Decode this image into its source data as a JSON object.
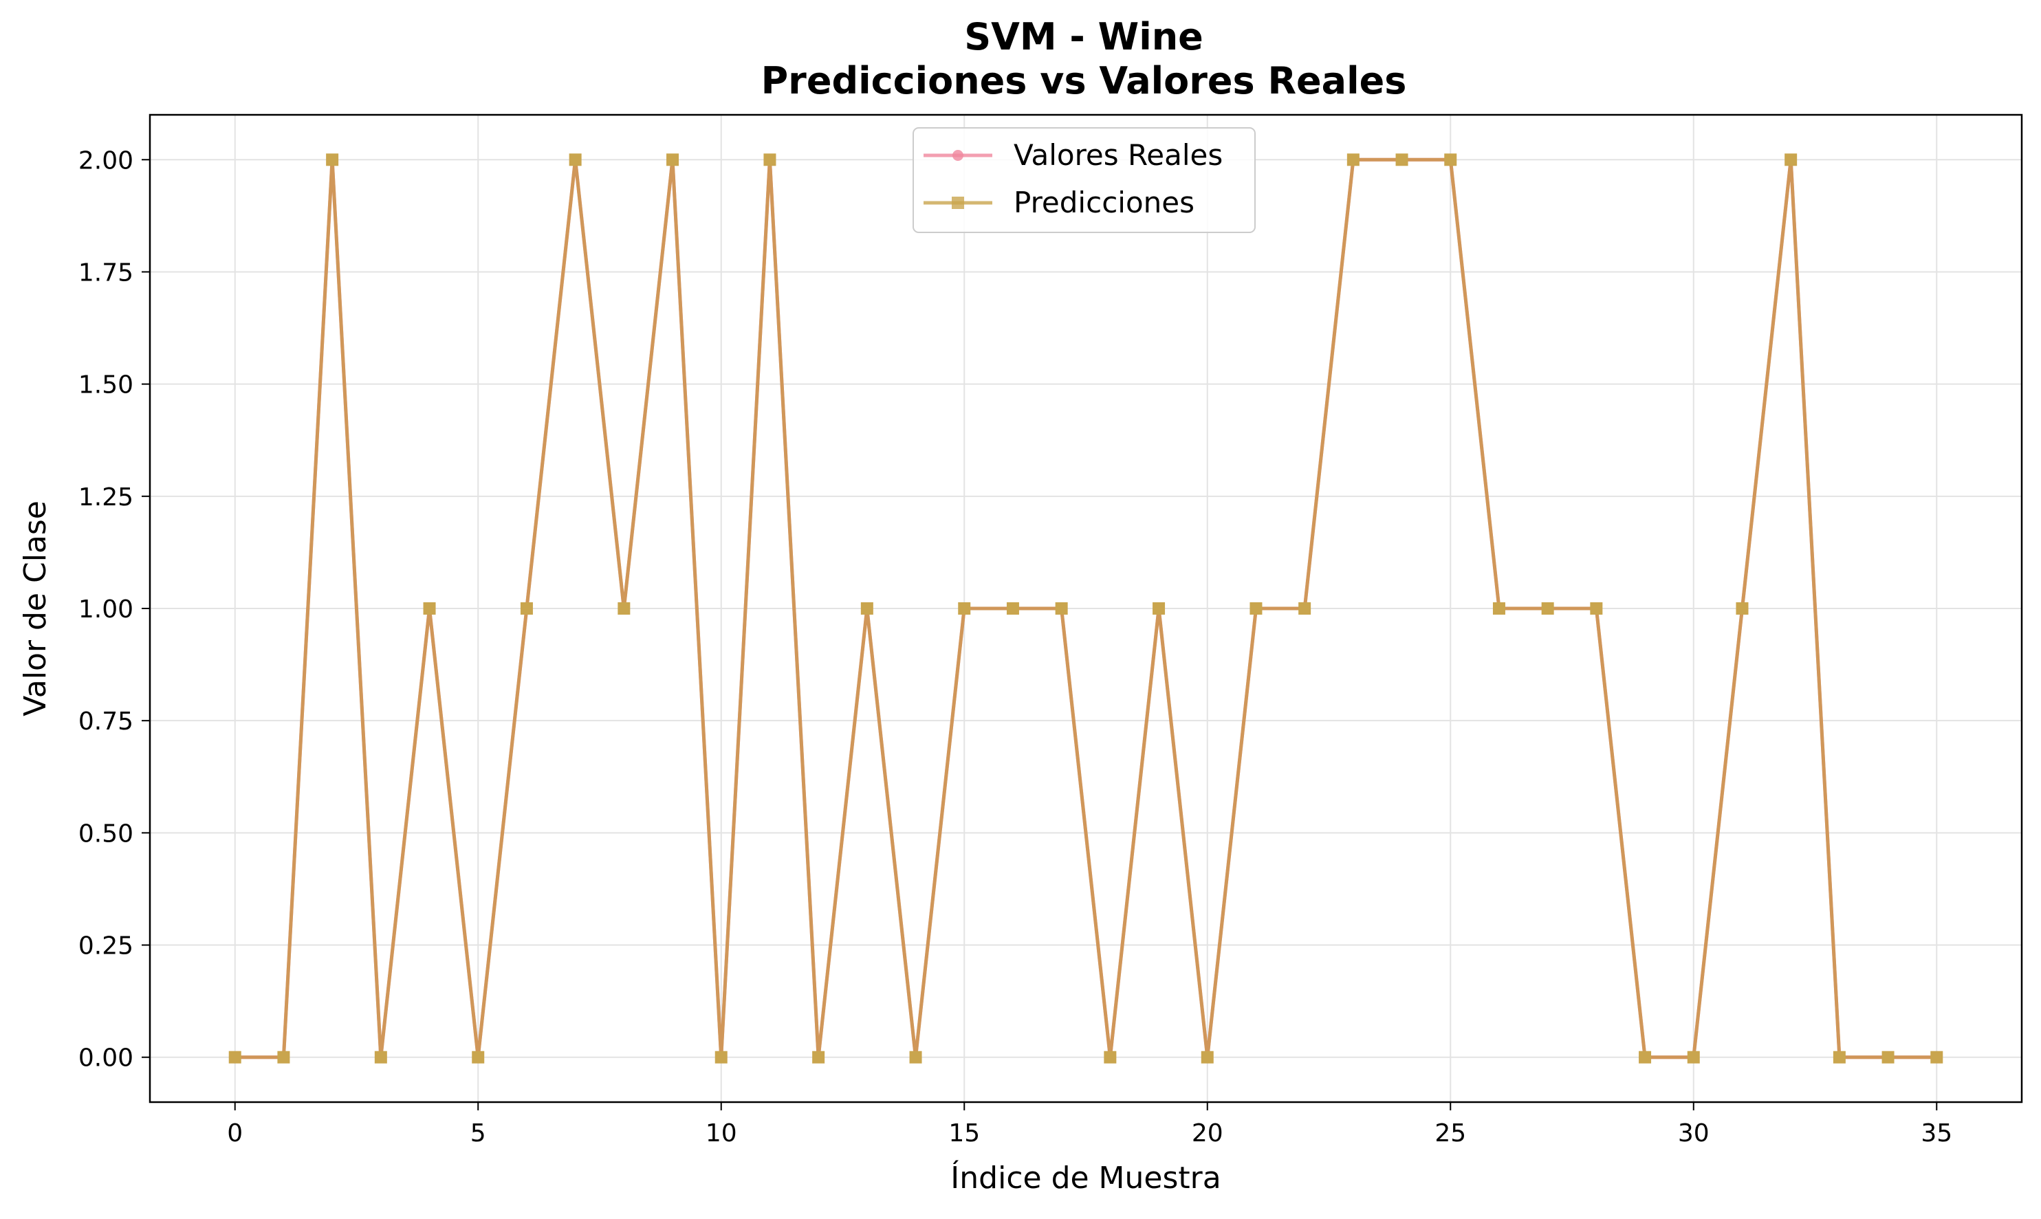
{
  "chart_data": {
    "type": "line",
    "title_line1": "SVM - Wine",
    "title_line2": "Predicciones vs Valores Reales",
    "xlabel": "Índice de Muestra",
    "ylabel": "Valor de Clase",
    "xlim": [
      -1.75,
      36.75
    ],
    "ylim": [
      -0.1,
      2.1
    ],
    "xticks": [
      0,
      5,
      10,
      15,
      20,
      25,
      30,
      35
    ],
    "xtick_labels": [
      "0",
      "5",
      "10",
      "15",
      "20",
      "25",
      "30",
      "35"
    ],
    "yticks": [
      0,
      0.25,
      0.5,
      0.75,
      1.0,
      1.25,
      1.5,
      1.75,
      2.0
    ],
    "ytick_labels": [
      "0.00",
      "0.25",
      "0.50",
      "0.75",
      "1.00",
      "1.25",
      "1.50",
      "1.75",
      "2.00"
    ],
    "grid": true,
    "legend_position": "top-center",
    "x": [
      0,
      1,
      2,
      3,
      4,
      5,
      6,
      7,
      8,
      9,
      10,
      11,
      12,
      13,
      14,
      15,
      16,
      17,
      18,
      19,
      20,
      21,
      22,
      23,
      24,
      25,
      26,
      27,
      28,
      29,
      30,
      31,
      32,
      33,
      34,
      35
    ],
    "series": [
      {
        "name": "Valores Reales",
        "marker": "circle",
        "color": "#f0879e",
        "values": [
          0,
          0,
          2,
          0,
          1,
          0,
          1,
          2,
          1,
          2,
          0,
          2,
          0,
          1,
          0,
          1,
          1,
          1,
          0,
          1,
          0,
          1,
          1,
          2,
          2,
          2,
          1,
          1,
          1,
          0,
          0,
          1,
          2,
          0,
          0,
          0
        ]
      },
      {
        "name": "Predicciones",
        "marker": "square",
        "color": "#c9a54e",
        "values": [
          0,
          0,
          2,
          0,
          1,
          0,
          1,
          2,
          1,
          2,
          0,
          2,
          0,
          1,
          0,
          1,
          1,
          1,
          0,
          1,
          0,
          1,
          1,
          2,
          2,
          2,
          1,
          1,
          1,
          0,
          0,
          1,
          2,
          0,
          0,
          0
        ]
      }
    ],
    "overlap_line_color": "#cc9650"
  }
}
